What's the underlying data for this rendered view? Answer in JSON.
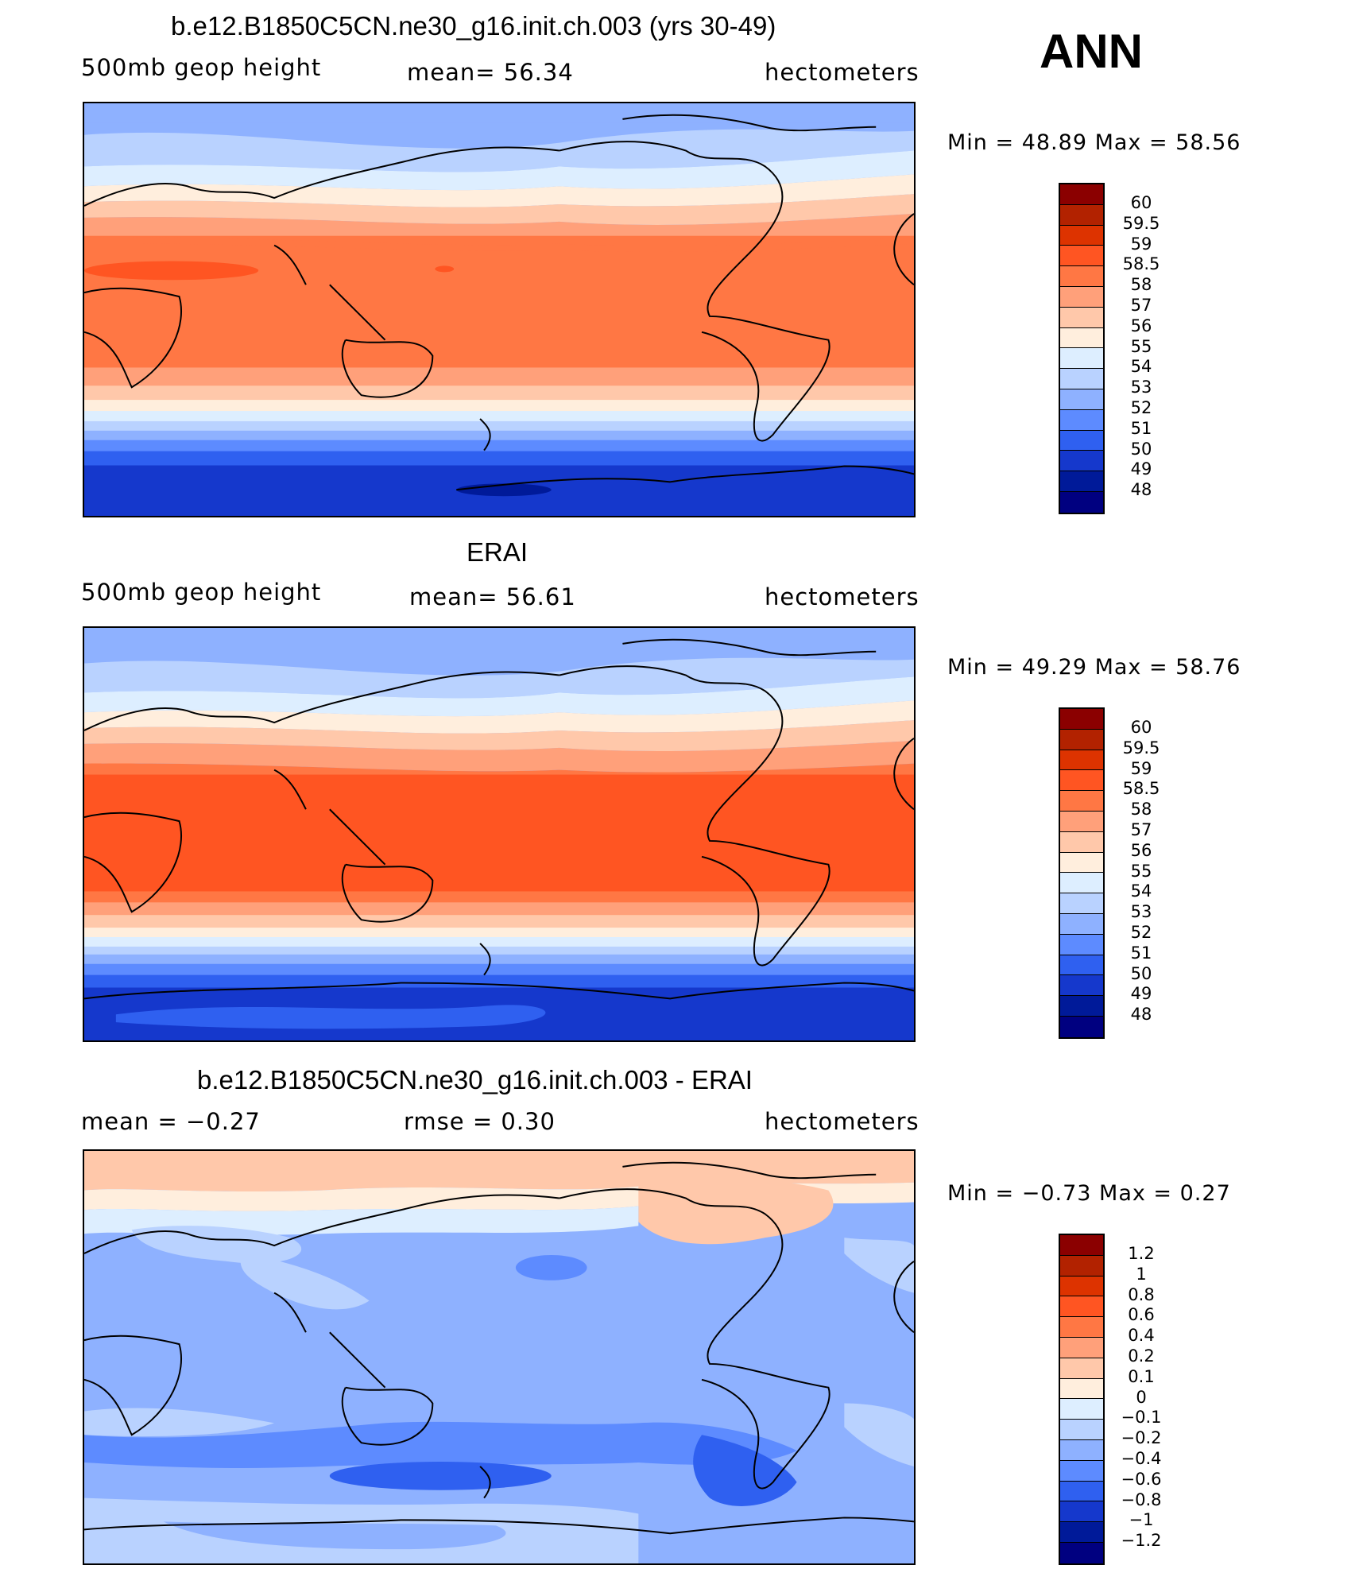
{
  "season": "ANN",
  "panels": [
    {
      "title": "b.e12.B1850C5CN.ne30_g16.init.ch.003 (yrs 30-49)",
      "left_label": "500mb  geop  height",
      "center_label": "mean=   56.34",
      "right_label": "hectometers",
      "minmax": "Min  =    48.89  Max  =    58.56",
      "colorbar_labels": [
        "60",
        "59.5",
        "59",
        "58.5",
        "58",
        "57",
        "56",
        "55",
        "54",
        "53",
        "52",
        "51",
        "50",
        "49",
        "48"
      ]
    },
    {
      "title": "ERAI",
      "left_label": "500mb  geop  height",
      "center_label": "mean=   56.61",
      "right_label": "hectometers",
      "minmax": "Min  =    49.29  Max  =    58.76",
      "colorbar_labels": [
        "60",
        "59.5",
        "59",
        "58.5",
        "58",
        "57",
        "56",
        "55",
        "54",
        "53",
        "52",
        "51",
        "50",
        "49",
        "48"
      ]
    },
    {
      "title": "b.e12.B1850C5CN.ne30_g16.init.ch.003 - ERAI",
      "left_label": "mean  =    −0.27",
      "center_label": "rmse  =     0.30",
      "right_label": "hectometers",
      "minmax": "Min  =   −0.73  Max  =     0.27",
      "colorbar_labels": [
        "1.2",
        "1",
        "0.8",
        "0.6",
        "0.4",
        "0.2",
        "0.1",
        "0",
        "−0.1",
        "−0.2",
        "−0.4",
        "−0.6",
        "−0.8",
        "−1",
        "−1.2"
      ]
    }
  ],
  "colors": {
    "colorbar": [
      "#8b0000",
      "#b22200",
      "#dd3300",
      "#ff5522",
      "#ff7744",
      "#ffa07a",
      "#ffc8aa",
      "#ffeedd",
      "#ddeeff",
      "#b9d2ff",
      "#8eb1ff",
      "#5d8bff",
      "#2f60f0",
      "#1538cc",
      "#001a99",
      "#000080"
    ],
    "land_outline": "#000000"
  }
}
